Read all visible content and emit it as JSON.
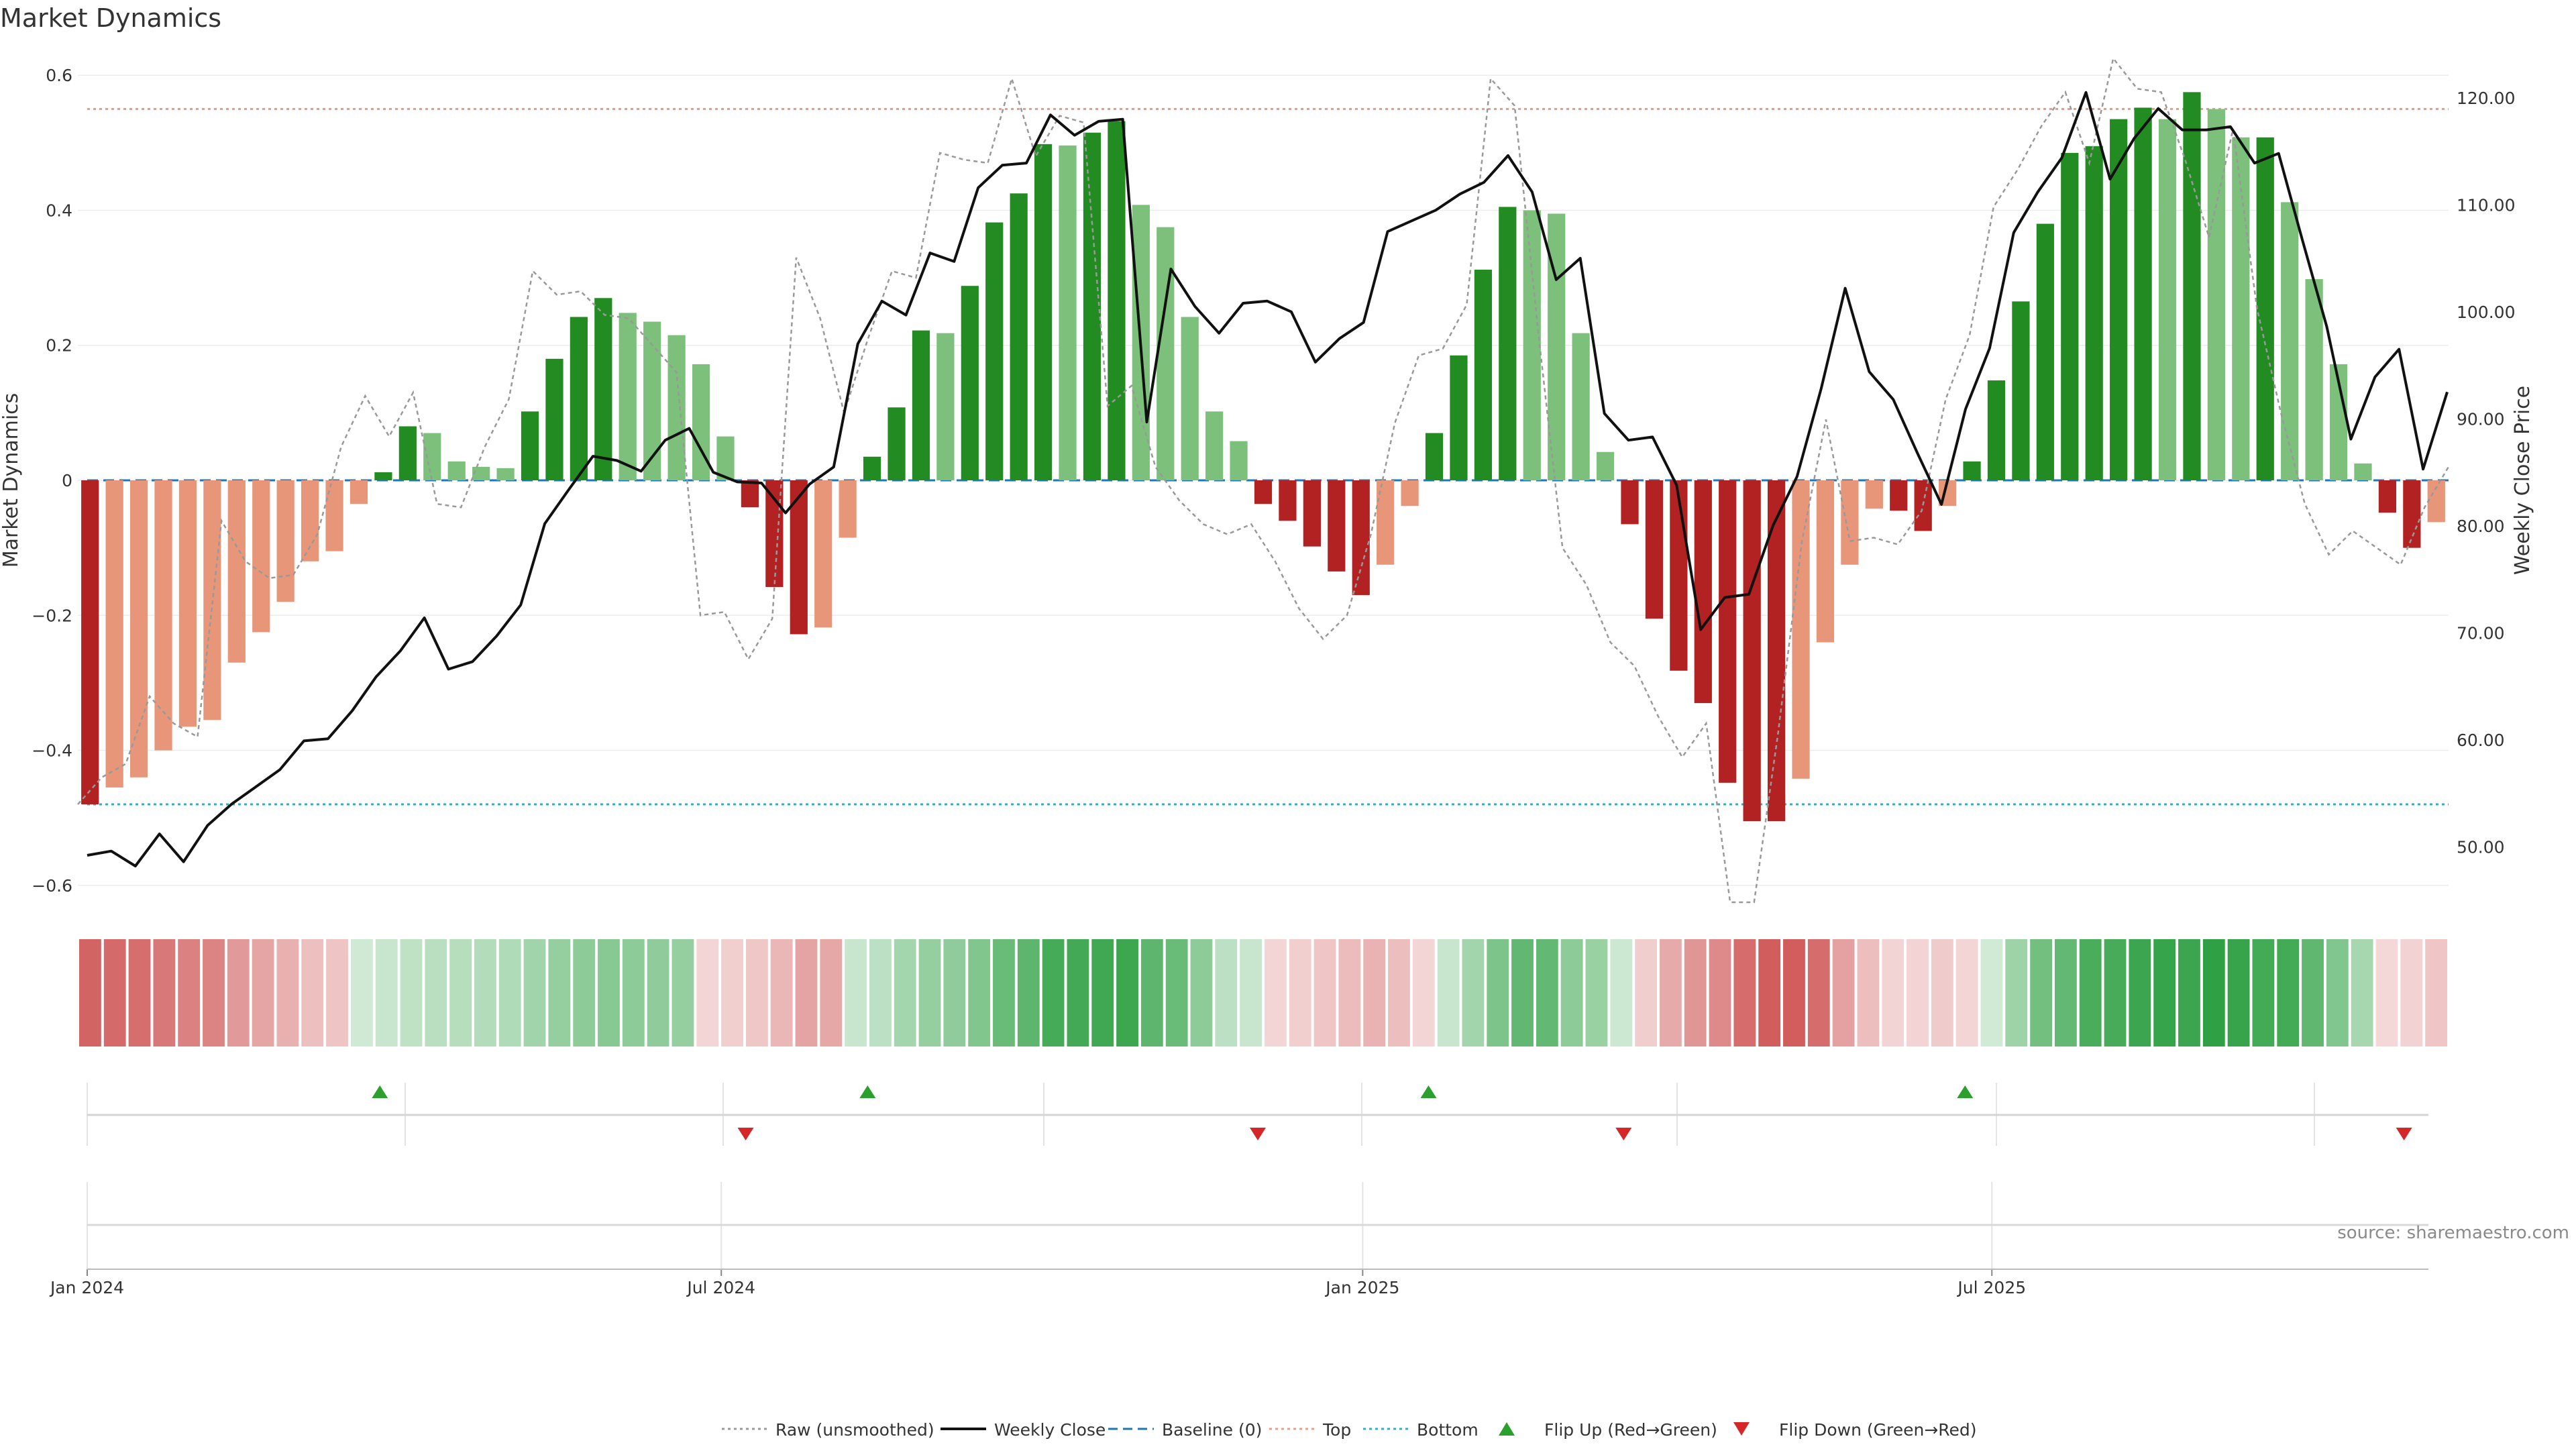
{
  "chart_data": {
    "type": "bar",
    "title": "Market Dynamics",
    "ylabel_left": "Market Dynamics",
    "ylabel_right": "Weekly Close Price",
    "ylim_left": [
      -0.63,
      0.63
    ],
    "ylim_right": [
      44.5,
      124.0
    ],
    "yticks_left": [
      {
        "value": 0.6,
        "label": "0.6"
      },
      {
        "value": 0.4,
        "label": "0.4"
      },
      {
        "value": 0.2,
        "label": "0.2"
      },
      {
        "value": 0,
        "label": "0"
      },
      {
        "value": -0.2,
        "label": "−0.2"
      },
      {
        "value": -0.4,
        "label": "−0.4"
      },
      {
        "value": -0.6,
        "label": "−0.6"
      }
    ],
    "yticks_right": [
      {
        "value": 120,
        "label": "120.00"
      },
      {
        "value": 110,
        "label": "110.00"
      },
      {
        "value": 100,
        "label": "100.00"
      },
      {
        "value": 90,
        "label": "90.00"
      },
      {
        "value": 80,
        "label": "80.00"
      },
      {
        "value": 70,
        "label": "70.00"
      },
      {
        "value": 60,
        "label": "60.00"
      },
      {
        "value": 50,
        "label": "50.00"
      }
    ],
    "x_ticks": [
      {
        "index": 0,
        "label": "Jan 2024"
      },
      {
        "index": 26,
        "label": "Jul 2024"
      },
      {
        "index": 52.3,
        "label": "Jan 2025"
      },
      {
        "index": 78.1,
        "label": "Jul 2025"
      }
    ],
    "top_level": 0.55,
    "bottom_level": -0.48,
    "bars": [
      -0.48,
      -0.455,
      -0.44,
      -0.4,
      -0.365,
      -0.355,
      -0.27,
      -0.225,
      -0.18,
      -0.12,
      -0.105,
      -0.035,
      0.012,
      0.08,
      0.07,
      0.028,
      0.02,
      0.018,
      0.102,
      0.18,
      0.242,
      0.27,
      0.248,
      0.235,
      0.215,
      0.172,
      0.065,
      -0.04,
      -0.158,
      -0.228,
      -0.218,
      -0.085,
      0.035,
      0.108,
      0.222,
      0.218,
      0.288,
      0.382,
      0.425,
      0.498,
      0.496,
      0.515,
      0.532,
      0.408,
      0.375,
      0.242,
      0.102,
      0.058,
      -0.035,
      -0.06,
      -0.098,
      -0.135,
      -0.17,
      -0.125,
      -0.038,
      0.07,
      0.185,
      0.312,
      0.405,
      0.4,
      0.395,
      0.218,
      0.042,
      -0.065,
      -0.205,
      -0.282,
      -0.33,
      -0.448,
      -0.505,
      -0.505,
      -0.442,
      -0.24,
      -0.125,
      -0.042,
      -0.045,
      -0.075,
      -0.038,
      0.028,
      0.148,
      0.265,
      0.38,
      0.485,
      0.495,
      0.535,
      0.552,
      0.535,
      0.575,
      0.55,
      0.508,
      0.508,
      0.412,
      0.298,
      0.172,
      0.025,
      -0.048,
      -0.1,
      -0.062
    ],
    "weekly_close": [
      49.2,
      49.6,
      48.2,
      51.2,
      48.6,
      52.0,
      54.0,
      55.6,
      57.2,
      59.9,
      60.1,
      62.7,
      65.9,
      68.3,
      71.4,
      66.6,
      67.3,
      69.7,
      72.6,
      80.2,
      83.4,
      86.5,
      86.1,
      85.1,
      88.0,
      89.1,
      85.0,
      84.1,
      84.0,
      81.2,
      83.9,
      85.5,
      97.0,
      101.0,
      99.7,
      105.5,
      104.7,
      111.6,
      113.7,
      113.9,
      118.4,
      116.5,
      117.8,
      118.0,
      89.7,
      104.0,
      100.5,
      98.0,
      100.8,
      101.0,
      100.0,
      95.3,
      97.5,
      99.0,
      107.5,
      108.5,
      109.5,
      111.0,
      112.1,
      114.6,
      111.2,
      103.0,
      105.0,
      90.5,
      88.0,
      88.3,
      83.8,
      70.3,
      73.3,
      73.6,
      80.0,
      84.6,
      92.8,
      102.2,
      94.4,
      91.8,
      86.8,
      82.0,
      90.9,
      96.6,
      107.4,
      111.2,
      114.4,
      120.5,
      112.4,
      116.2,
      119.0,
      117.0,
      117.0,
      117.3,
      113.9,
      114.8,
      106.6,
      98.6,
      88.1,
      93.9,
      96.5,
      85.3,
      92.5
    ],
    "raw": [
      -0.48,
      -0.44,
      -0.42,
      -0.32,
      -0.36,
      -0.38,
      -0.06,
      -0.12,
      -0.145,
      -0.14,
      -0.08,
      0.05,
      0.125,
      0.065,
      0.13,
      -0.035,
      -0.04,
      0.05,
      0.12,
      0.31,
      0.275,
      0.28,
      0.245,
      0.24,
      0.2,
      0.16,
      -0.2,
      -0.195,
      -0.265,
      -0.205,
      0.33,
      0.24,
      0.1,
      0.21,
      0.31,
      0.3,
      0.485,
      0.475,
      0.47,
      0.595,
      0.48,
      0.54,
      0.53,
      0.11,
      0.14,
      0.02,
      -0.03,
      -0.065,
      -0.08,
      -0.065,
      -0.12,
      -0.19,
      -0.235,
      -0.2,
      -0.08,
      0.085,
      0.185,
      0.195,
      0.26,
      0.595,
      0.555,
      0.215,
      -0.1,
      -0.155,
      -0.24,
      -0.275,
      -0.35,
      -0.41,
      -0.36,
      -0.625,
      -0.625,
      -0.375,
      -0.09,
      0.09,
      -0.09,
      -0.085,
      -0.095,
      -0.045,
      0.12,
      0.215,
      0.405,
      0.46,
      0.525,
      0.575,
      0.47,
      0.625,
      0.58,
      0.575,
      0.475,
      0.36,
      0.52,
      0.255,
      0.1,
      -0.035,
      -0.11,
      -0.075,
      -0.1,
      -0.125,
      -0.04,
      0.02
    ],
    "heat_values": [
      -0.48,
      -0.455,
      -0.44,
      -0.4,
      -0.365,
      -0.355,
      -0.27,
      -0.225,
      -0.18,
      -0.12,
      -0.105,
      0.035,
      0.06,
      0.09,
      0.11,
      0.12,
      0.13,
      0.14,
      0.19,
      0.23,
      0.26,
      0.28,
      0.26,
      0.25,
      0.23,
      -0.035,
      -0.06,
      -0.09,
      -0.158,
      -0.228,
      -0.218,
      0.06,
      0.1,
      0.18,
      0.23,
      0.25,
      0.3,
      0.38,
      0.42,
      0.5,
      0.51,
      0.52,
      0.53,
      0.42,
      0.38,
      0.26,
      0.1,
      0.06,
      -0.035,
      -0.06,
      -0.098,
      -0.135,
      -0.17,
      -0.125,
      -0.038,
      0.06,
      0.185,
      0.312,
      0.405,
      0.4,
      0.26,
      0.218,
      0.042,
      -0.065,
      -0.205,
      -0.282,
      -0.33,
      -0.448,
      -0.505,
      -0.505,
      -0.442,
      -0.24,
      -0.125,
      -0.042,
      -0.045,
      -0.075,
      -0.038,
      0.028,
      0.2,
      0.35,
      0.4,
      0.485,
      0.495,
      0.535,
      0.552,
      0.535,
      0.575,
      0.55,
      0.508,
      0.508,
      0.412,
      0.298,
      0.172,
      -0.03,
      -0.048,
      -0.1
    ],
    "flips_up": [
      12,
      32,
      55,
      77
    ],
    "flips_down": [
      27,
      48,
      63,
      95
    ],
    "legend": [
      {
        "label": "Raw (unsmoothed)",
        "kind": "dotted-line",
        "color": "#999999"
      },
      {
        "label": "Weekly Close",
        "kind": "solid-line",
        "color": "#111111"
      },
      {
        "label": "Baseline (0)",
        "kind": "dashed-line",
        "color": "#1f77b4"
      },
      {
        "label": "Top",
        "kind": "dotted-line",
        "color": "#e8a080"
      },
      {
        "label": "Bottom",
        "kind": "dotted-line",
        "color": "#2ab0c8"
      },
      {
        "label": "Flip Up (Red→Green)",
        "kind": "triangle-up",
        "color": "#2ca02c"
      },
      {
        "label": "Flip Down (Green→Red)",
        "kind": "triangle-down",
        "color": "#d62728"
      }
    ],
    "grid": true,
    "legend_placement": "bottom-center",
    "colors": {
      "strong_green": "#228b22",
      "light_green": "#7cc07c",
      "strong_red": "#b22222",
      "light_red": "#e8967a",
      "price_line": "#111111",
      "raw_line": "#999999",
      "top_line": "#e8a080",
      "bottom_line": "#2ab0c8",
      "baseline": "#1f77b4"
    }
  },
  "source_note": "source: sharemaestro.com"
}
